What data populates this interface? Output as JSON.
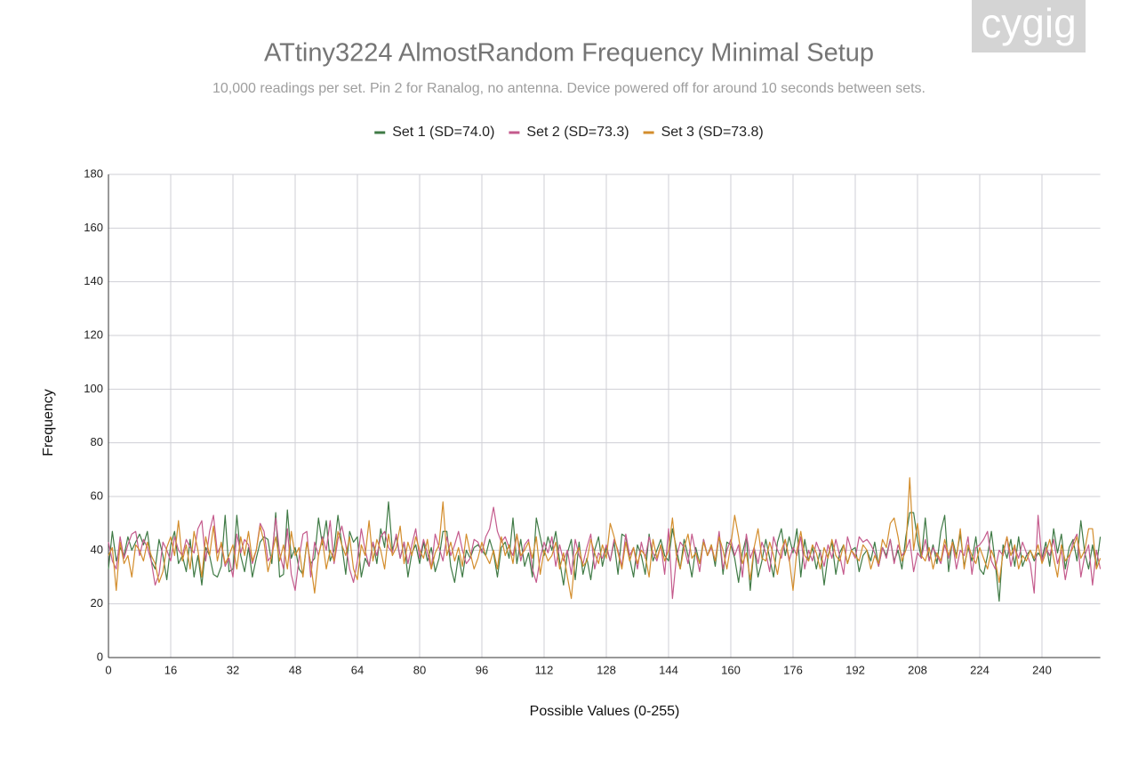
{
  "chart_data": {
    "type": "line",
    "title": "ATtiny3224 AlmostRandom Frequency Minimal Setup",
    "subtitle": "10,000 readings per set. Pin 2 for Ranalog, no antenna. Device powered off for around 10 seconds between sets.",
    "watermark": "cygig",
    "x_label": "Possible Values (0-255)",
    "y_label": "Frequency",
    "xlim": [
      0,
      255
    ],
    "xticks": [
      0,
      16,
      32,
      48,
      64,
      80,
      96,
      112,
      128,
      144,
      160,
      176,
      192,
      208,
      224,
      240
    ],
    "ylim": [
      0,
      180
    ],
    "yticks": [
      0,
      20,
      40,
      60,
      80,
      100,
      120,
      140,
      160,
      180
    ],
    "grid": true,
    "legend": "top",
    "x": [
      0,
      1,
      2,
      3,
      4,
      5,
      6,
      7,
      8,
      9,
      10,
      11,
      12,
      13,
      14,
      15,
      16,
      17,
      18,
      19,
      20,
      21,
      22,
      23,
      24,
      25,
      26,
      27,
      28,
      29,
      30,
      31,
      32,
      33,
      34,
      35,
      36,
      37,
      38,
      39,
      40,
      41,
      42,
      43,
      44,
      45,
      46,
      47,
      48,
      49,
      50,
      51,
      52,
      53,
      54,
      55,
      56,
      57,
      58,
      59,
      60,
      61,
      62,
      63,
      64,
      65,
      66,
      67,
      68,
      69,
      70,
      71,
      72,
      73,
      74,
      75,
      76,
      77,
      78,
      79,
      80,
      81,
      82,
      83,
      84,
      85,
      86,
      87,
      88,
      89,
      90,
      91,
      92,
      93,
      94,
      95,
      96,
      97,
      98,
      99,
      100,
      101,
      102,
      103,
      104,
      105,
      106,
      107,
      108,
      109,
      110,
      111,
      112,
      113,
      114,
      115,
      116,
      117,
      118,
      119,
      120,
      121,
      122,
      123,
      124,
      125,
      126,
      127,
      128,
      129,
      130,
      131,
      132,
      133,
      134,
      135,
      136,
      137,
      138,
      139,
      140,
      141,
      142,
      143,
      144,
      145,
      146,
      147,
      148,
      149,
      150,
      151,
      152,
      153,
      154,
      155,
      156,
      157,
      158,
      159,
      160,
      161,
      162,
      163,
      164,
      165,
      166,
      167,
      168,
      169,
      170,
      171,
      172,
      173,
      174,
      175,
      176,
      177,
      178,
      179,
      180,
      181,
      182,
      183,
      184,
      185,
      186,
      187,
      188,
      189,
      190,
      191,
      192,
      193,
      194,
      195,
      196,
      197,
      198,
      199,
      200,
      201,
      202,
      203,
      204,
      205,
      206,
      207,
      208,
      209,
      210,
      211,
      212,
      213,
      214,
      215,
      216,
      217,
      218,
      219,
      220,
      221,
      222,
      223,
      224,
      225,
      226,
      227,
      228,
      229,
      230,
      231,
      232,
      233,
      234,
      235,
      236,
      237,
      238,
      239,
      240,
      241,
      242,
      243,
      244,
      245,
      246,
      247,
      248,
      249,
      250,
      251,
      252,
      253,
      254,
      255
    ],
    "series": [
      {
        "name": "Set 1 (SD=74.0)",
        "color": "#3f7a45",
        "values": [
          33,
          47,
          36,
          41,
          38,
          45,
          40,
          43,
          46,
          42,
          47,
          36,
          33,
          44,
          38,
          29,
          42,
          47,
          35,
          38,
          32,
          44,
          30,
          38,
          27,
          41,
          38,
          31,
          30,
          34,
          53,
          32,
          33,
          53,
          38,
          32,
          41,
          30,
          37,
          43,
          45,
          44,
          35,
          54,
          30,
          31,
          55,
          37,
          41,
          33,
          31,
          43,
          35,
          37,
          52,
          42,
          51,
          36,
          40,
          53,
          42,
          31,
          47,
          43,
          45,
          30,
          37,
          34,
          43,
          35,
          48,
          41,
          58,
          40,
          45,
          37,
          43,
          30,
          39,
          42,
          35,
          43,
          36,
          41,
          32,
          37,
          47,
          47,
          34,
          28,
          38,
          30,
          40,
          37,
          41,
          42,
          40,
          38,
          44,
          39,
          30,
          41,
          43,
          37,
          52,
          35,
          44,
          34,
          39,
          30,
          52,
          45,
          38,
          45,
          40,
          47,
          36,
          27,
          39,
          44,
          29,
          43,
          31,
          37,
          29,
          40,
          45,
          34,
          41,
          36,
          43,
          31,
          46,
          45,
          37,
          30,
          42,
          38,
          31,
          46,
          36,
          40,
          44,
          38,
          36,
          48,
          41,
          33,
          44,
          38,
          30,
          41,
          35,
          44,
          38,
          42,
          34,
          46,
          31,
          43,
          42,
          37,
          28,
          39,
          45,
          25,
          41,
          30,
          36,
          44,
          37,
          30,
          43,
          48,
          38,
          45,
          39,
          48,
          30,
          44,
          36,
          41,
          33,
          40,
          27,
          38,
          43,
          31,
          39,
          42,
          35,
          40,
          41,
          32,
          38,
          40,
          36,
          43,
          34,
          41,
          38,
          44,
          36,
          40,
          33,
          45,
          54,
          54,
          44,
          37,
          52,
          36,
          42,
          35,
          47,
          53,
          32,
          44,
          38,
          46,
          34,
          41,
          36,
          45,
          33,
          31,
          38,
          47,
          35,
          21,
          42,
          37,
          44,
          34,
          45,
          34,
          38,
          40,
          36,
          39,
          37,
          43,
          34,
          48,
          39,
          46,
          33,
          41,
          44,
          36,
          51,
          39,
          33,
          42,
          34,
          45
        ]
      },
      {
        "name": "Set 2 (SD=73.3)",
        "color": "#c45a8c",
        "values": [
          43,
          36,
          33,
          45,
          37,
          42,
          46,
          47,
          38,
          44,
          41,
          36,
          27,
          31,
          43,
          40,
          36,
          45,
          40,
          38,
          44,
          41,
          39,
          48,
          51,
          36,
          47,
          53,
          39,
          42,
          34,
          37,
          30,
          46,
          39,
          44,
          42,
          35,
          40,
          50,
          47,
          36,
          38,
          52,
          39,
          33,
          48,
          31,
          25,
          37,
          46,
          47,
          30,
          43,
          38,
          45,
          40,
          51,
          35,
          44,
          49,
          42,
          33,
          28,
          36,
          48,
          40,
          34,
          43,
          38,
          45,
          47,
          41,
          39,
          46,
          37,
          43,
          35,
          42,
          48,
          37,
          44,
          39,
          33,
          46,
          41,
          36,
          45,
          38,
          42,
          47,
          40,
          35,
          37,
          44,
          43,
          39,
          45,
          48,
          56,
          47,
          43,
          45,
          41,
          38,
          46,
          36,
          42,
          44,
          33,
          28,
          37,
          43,
          39,
          45,
          34,
          42,
          36,
          40,
          31,
          44,
          38,
          35,
          41,
          46,
          33,
          39,
          37,
          42,
          36,
          44,
          40,
          34,
          46,
          38,
          41,
          33,
          43,
          37,
          45,
          39,
          36,
          42,
          31,
          48,
          22,
          37,
          43,
          41,
          35,
          46,
          39,
          32,
          44,
          38,
          41,
          36,
          47,
          33,
          40,
          44,
          38,
          42,
          30,
          46,
          37,
          41,
          35,
          43,
          39,
          32,
          45,
          40,
          37,
          44,
          36,
          41,
          38,
          45,
          33,
          40,
          36,
          43,
          39,
          34,
          42,
          37,
          44,
          38,
          31,
          45,
          40,
          37,
          45,
          43,
          44,
          42,
          39,
          34,
          41,
          37,
          44,
          35,
          42,
          38,
          40,
          44,
          32,
          39,
          37,
          44,
          36,
          41,
          38,
          35,
          42,
          37,
          43,
          33,
          40,
          38,
          45,
          31,
          41,
          42,
          44,
          47,
          36,
          33,
          40,
          38,
          45,
          34,
          41,
          37,
          43,
          39,
          35,
          24,
          53,
          36,
          41,
          38,
          44,
          35,
          40,
          29,
          37,
          43,
          46,
          30,
          38,
          42,
          27,
          40,
          33
        ]
      },
      {
        "name": "Set 3 (SD=73.8)",
        "color": "#d38d2c",
        "values": [
          38,
          41,
          25,
          43,
          35,
          38,
          30,
          42,
          40,
          36,
          43,
          38,
          35,
          28,
          32,
          41,
          45,
          38,
          51,
          36,
          42,
          33,
          47,
          40,
          30,
          45,
          38,
          49,
          36,
          43,
          35,
          38,
          42,
          33,
          45,
          38,
          47,
          36,
          40,
          49,
          43,
          32,
          38,
          45,
          36,
          42,
          33,
          47,
          38,
          41,
          30,
          43,
          35,
          24,
          38,
          44,
          33,
          40,
          36,
          47,
          42,
          38,
          45,
          33,
          29,
          42,
          38,
          51,
          36,
          44,
          40,
          33,
          46,
          38,
          41,
          49,
          35,
          43,
          38,
          45,
          40,
          37,
          44,
          33,
          39,
          42,
          58,
          38,
          43,
          36,
          41,
          34,
          46,
          39,
          33,
          37,
          43,
          38,
          35,
          40,
          33,
          45,
          38,
          42,
          35,
          46,
          38,
          40,
          43,
          37,
          45,
          31,
          40,
          36,
          38,
          43,
          33,
          39,
          30,
          22,
          38,
          41,
          34,
          36,
          44,
          39,
          35,
          42,
          37,
          50,
          45,
          39,
          33,
          43,
          36,
          41,
          35,
          40,
          38,
          30,
          44,
          37,
          42,
          36,
          40,
          52,
          38,
          33,
          41,
          46,
          37,
          39,
          35,
          43,
          38,
          42,
          36,
          45,
          40,
          33,
          42,
          53,
          45,
          35,
          39,
          29,
          41,
          48,
          37,
          36,
          43,
          38,
          31,
          40,
          44,
          37,
          25,
          40,
          47,
          38,
          36,
          42,
          39,
          33,
          41,
          37,
          44,
          38,
          36,
          42,
          35,
          40,
          38,
          36,
          42,
          40,
          33,
          38,
          35,
          44,
          41,
          50,
          52,
          45,
          36,
          40,
          67,
          40,
          50,
          38,
          36,
          41,
          33,
          39,
          36,
          44,
          38,
          43,
          37,
          48,
          33,
          42,
          38,
          35,
          41,
          37,
          33,
          40,
          36,
          28,
          39,
          45,
          38,
          42,
          33,
          38,
          36,
          40,
          37,
          42,
          35,
          39,
          44,
          37,
          30,
          42,
          36,
          38,
          41,
          45,
          37,
          40,
          48,
          48,
          33,
          37
        ]
      }
    ]
  }
}
